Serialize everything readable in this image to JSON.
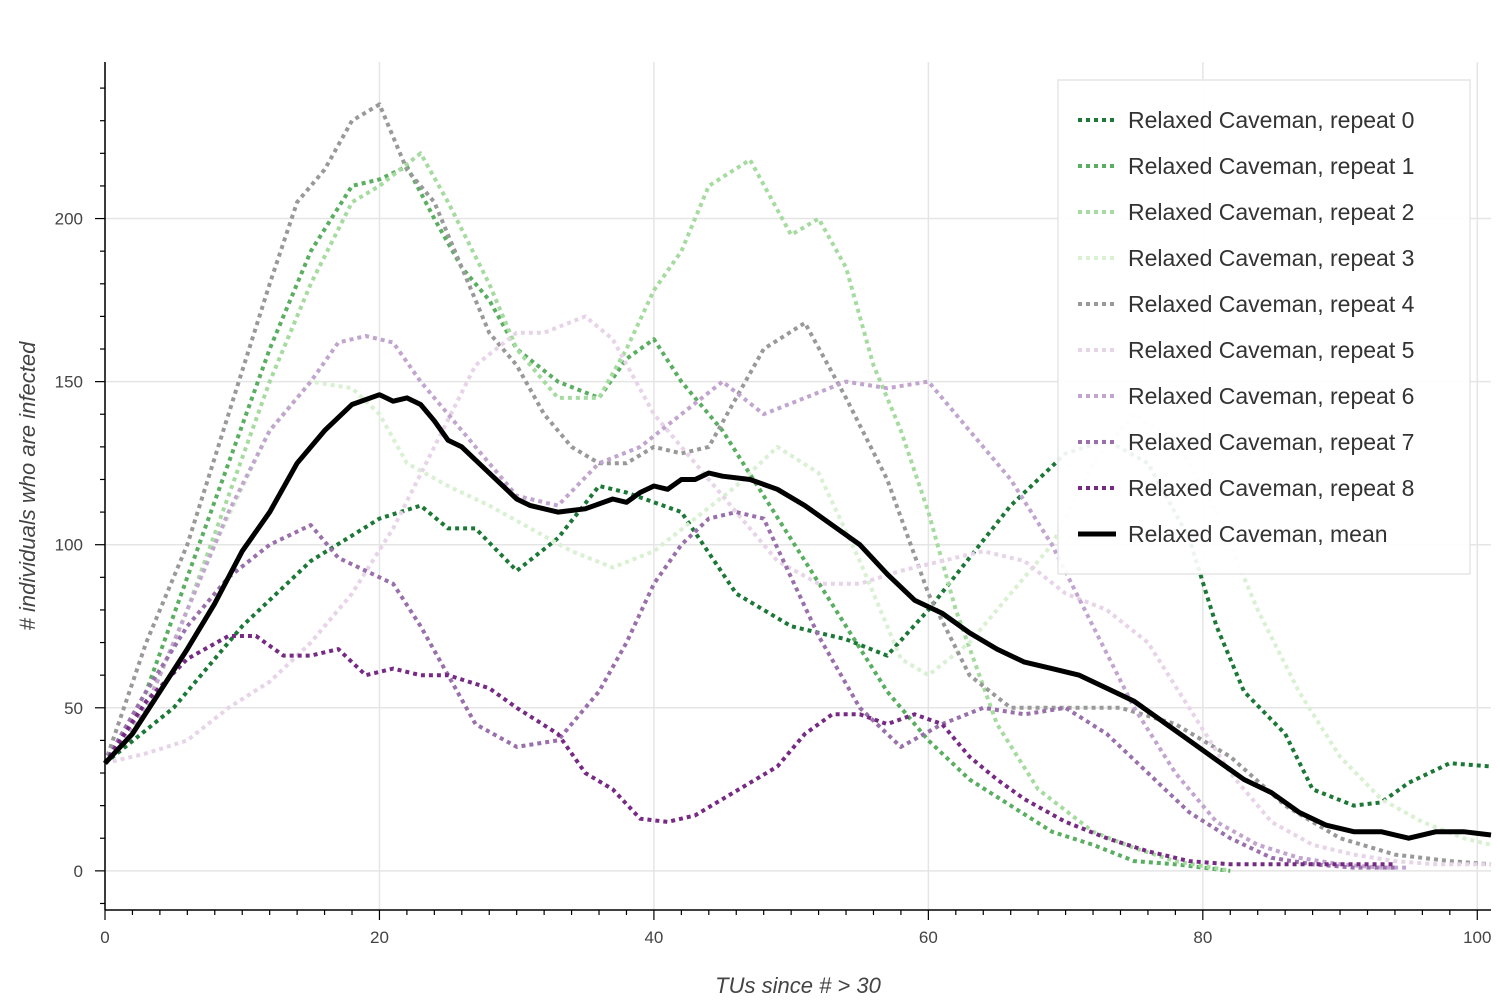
{
  "chart_data": {
    "type": "line",
    "title": "",
    "xlabel": "TUs since # > 30",
    "ylabel": "# individuals who are infected",
    "xlim": [
      0,
      101
    ],
    "ylim": [
      -12,
      248
    ],
    "x_ticks": [
      0,
      20,
      40,
      60,
      80,
      100
    ],
    "y_ticks": [
      0,
      50,
      100,
      150,
      200
    ],
    "grid": true,
    "legend_position": "top-right",
    "series": [
      {
        "name": "Relaxed Caveman, repeat 0",
        "color": "#1b7837",
        "dash": "dotted",
        "x": [
          0,
          5,
          10,
          15,
          20,
          23,
          25,
          27,
          30,
          33,
          36,
          38,
          42,
          46,
          50,
          54,
          57,
          60,
          63,
          66,
          70,
          73,
          76,
          79,
          81,
          83,
          86,
          88,
          91,
          93,
          95,
          98,
          101
        ],
        "y": [
          33,
          50,
          75,
          95,
          108,
          112,
          105,
          105,
          92,
          102,
          118,
          116,
          110,
          85,
          75,
          71,
          66,
          80,
          96,
          112,
          128,
          132,
          125,
          102,
          75,
          55,
          42,
          25,
          20,
          21,
          27,
          33,
          32
        ]
      },
      {
        "name": "Relaxed Caveman, repeat 1",
        "color": "#5aae61",
        "dash": "dotted",
        "x": [
          0,
          3,
          6,
          9,
          12,
          15,
          18,
          20,
          22,
          24,
          26,
          28,
          30,
          33,
          36,
          38,
          40,
          42,
          45,
          48,
          51,
          54,
          57,
          60,
          63,
          66,
          69,
          72,
          75,
          78,
          80,
          82
        ],
        "y": [
          33,
          55,
          90,
          125,
          160,
          190,
          210,
          212,
          216,
          200,
          185,
          175,
          160,
          150,
          145,
          157,
          163,
          150,
          135,
          115,
          95,
          75,
          55,
          40,
          28,
          20,
          12,
          8,
          3,
          2,
          1,
          0
        ]
      },
      {
        "name": "Relaxed Caveman, repeat 2",
        "color": "#a6dba0",
        "dash": "dotted",
        "x": [
          0,
          3,
          6,
          9,
          12,
          15,
          18,
          20,
          23,
          25,
          28,
          30,
          33,
          36,
          38,
          40,
          42,
          44,
          47,
          50,
          52,
          54,
          56,
          58,
          60,
          62,
          65,
          68,
          72,
          75,
          78,
          82
        ],
        "y": [
          33,
          50,
          80,
          115,
          150,
          180,
          205,
          210,
          220,
          205,
          180,
          160,
          145,
          145,
          160,
          178,
          190,
          210,
          218,
          195,
          200,
          185,
          155,
          135,
          110,
          80,
          45,
          25,
          12,
          7,
          3,
          0
        ]
      },
      {
        "name": "Relaxed Caveman, repeat 3",
        "color": "#d9f0d3",
        "dash": "dotted",
        "x": [
          0,
          4,
          8,
          12,
          15,
          18,
          20,
          22,
          25,
          28,
          31,
          34,
          37,
          40,
          43,
          46,
          49,
          52,
          55,
          58,
          60,
          63,
          66,
          69,
          72,
          75,
          78,
          81,
          84,
          87,
          90,
          93,
          96,
          99,
          101
        ],
        "y": [
          33,
          60,
          100,
          135,
          150,
          148,
          140,
          125,
          118,
          112,
          105,
          98,
          93,
          98,
          108,
          118,
          130,
          122,
          95,
          65,
          60,
          70,
          85,
          100,
          125,
          140,
          132,
          110,
          80,
          55,
          35,
          22,
          15,
          10,
          8
        ]
      },
      {
        "name": "Relaxed Caveman, repeat 4",
        "color": "#999999",
        "dash": "dotted",
        "x": [
          0,
          3,
          6,
          9,
          12,
          14,
          16,
          18,
          20,
          22,
          24,
          26,
          28,
          30,
          32,
          34,
          36,
          38,
          40,
          42,
          44,
          46,
          48,
          51,
          54,
          57,
          60,
          63,
          66,
          70,
          74,
          78,
          82,
          86,
          90,
          94,
          98,
          101
        ],
        "y": [
          33,
          70,
          100,
          140,
          180,
          205,
          215,
          230,
          235,
          215,
          205,
          185,
          165,
          155,
          140,
          130,
          125,
          125,
          130,
          128,
          130,
          145,
          160,
          168,
          145,
          120,
          85,
          60,
          50,
          50,
          50,
          45,
          35,
          20,
          10,
          5,
          3,
          2
        ]
      },
      {
        "name": "Relaxed Caveman, repeat 5",
        "color": "#e7d4e8",
        "dash": "dotted",
        "x": [
          0,
          3,
          6,
          9,
          12,
          15,
          18,
          21,
          24,
          27,
          30,
          32,
          35,
          37,
          40,
          43,
          46,
          49,
          52,
          55,
          58,
          61,
          64,
          67,
          70,
          73,
          76,
          79,
          82,
          85,
          88,
          91,
          94,
          97,
          101
        ],
        "y": [
          33,
          36,
          40,
          50,
          58,
          70,
          85,
          105,
          130,
          155,
          165,
          165,
          170,
          163,
          140,
          125,
          110,
          95,
          88,
          88,
          92,
          95,
          98,
          95,
          85,
          80,
          70,
          50,
          30,
          15,
          8,
          5,
          3,
          2,
          2
        ]
      },
      {
        "name": "Relaxed Caveman, repeat 6",
        "color": "#c2a5cf",
        "dash": "dotted",
        "x": [
          0,
          3,
          6,
          9,
          12,
          15,
          17,
          19,
          21,
          23,
          25,
          27,
          30,
          33,
          36,
          39,
          42,
          45,
          48,
          51,
          54,
          57,
          60,
          63,
          66,
          69,
          72,
          75,
          78,
          81,
          84,
          87,
          90,
          93,
          95
        ],
        "y": [
          33,
          50,
          80,
          110,
          135,
          150,
          162,
          164,
          162,
          150,
          140,
          130,
          115,
          112,
          125,
          130,
          140,
          150,
          140,
          145,
          150,
          148,
          150,
          135,
          120,
          100,
          75,
          50,
          30,
          15,
          8,
          4,
          2,
          1,
          1
        ]
      },
      {
        "name": "Relaxed Caveman, repeat 7",
        "color": "#9970ab",
        "dash": "dotted",
        "x": [
          0,
          3,
          6,
          9,
          12,
          15,
          17,
          19,
          21,
          23,
          25,
          27,
          30,
          33,
          36,
          38,
          40,
          42,
          44,
          46,
          48,
          50,
          52,
          55,
          58,
          61,
          64,
          67,
          70,
          73,
          76,
          79,
          82,
          85,
          88,
          91,
          94
        ],
        "y": [
          33,
          55,
          75,
          90,
          100,
          106,
          96,
          92,
          88,
          75,
          60,
          45,
          38,
          40,
          55,
          70,
          88,
          100,
          108,
          110,
          108,
          90,
          72,
          50,
          38,
          45,
          50,
          48,
          50,
          42,
          30,
          18,
          10,
          4,
          2,
          1,
          1
        ]
      },
      {
        "name": "Relaxed Caveman, repeat 8",
        "color": "#762a83",
        "dash": "dotted",
        "x": [
          0,
          3,
          6,
          9,
          11,
          13,
          15,
          17,
          19,
          21,
          23,
          25,
          28,
          30,
          33,
          35,
          37,
          39,
          41,
          43,
          45,
          47,
          49,
          51,
          53,
          55,
          57,
          59,
          61,
          63,
          65,
          67,
          70,
          73,
          76,
          79,
          82,
          85,
          88,
          91,
          94
        ],
        "y": [
          33,
          52,
          65,
          72,
          72,
          66,
          66,
          68,
          60,
          62,
          60,
          60,
          56,
          50,
          42,
          30,
          25,
          16,
          15,
          17,
          22,
          27,
          32,
          42,
          48,
          48,
          45,
          48,
          45,
          35,
          28,
          22,
          15,
          10,
          6,
          3,
          2,
          2,
          2,
          2,
          2
        ]
      },
      {
        "name": "Relaxed Caveman, mean",
        "color": "#000000",
        "dash": "solid",
        "x": [
          0,
          2,
          4,
          6,
          8,
          10,
          12,
          14,
          16,
          18,
          20,
          21,
          22,
          23,
          24,
          25,
          26,
          28,
          30,
          31,
          33,
          35,
          37,
          38,
          39,
          40,
          41,
          42,
          43,
          44,
          45,
          47,
          49,
          51,
          53,
          55,
          57,
          59,
          61,
          63,
          65,
          67,
          69,
          71,
          73,
          75,
          77,
          79,
          81,
          83,
          85,
          87,
          89,
          91,
          93,
          95,
          97,
          99,
          101
        ],
        "y": [
          33,
          42,
          55,
          68,
          82,
          98,
          110,
          125,
          135,
          143,
          146,
          144,
          145,
          143,
          138,
          132,
          130,
          122,
          114,
          112,
          110,
          111,
          114,
          113,
          116,
          118,
          117,
          120,
          120,
          122,
          121,
          120,
          117,
          112,
          106,
          100,
          91,
          83,
          79,
          73,
          68,
          64,
          62,
          60,
          56,
          52,
          46,
          40,
          34,
          28,
          24,
          18,
          14,
          12,
          12,
          10,
          12,
          12,
          11
        ]
      }
    ]
  }
}
